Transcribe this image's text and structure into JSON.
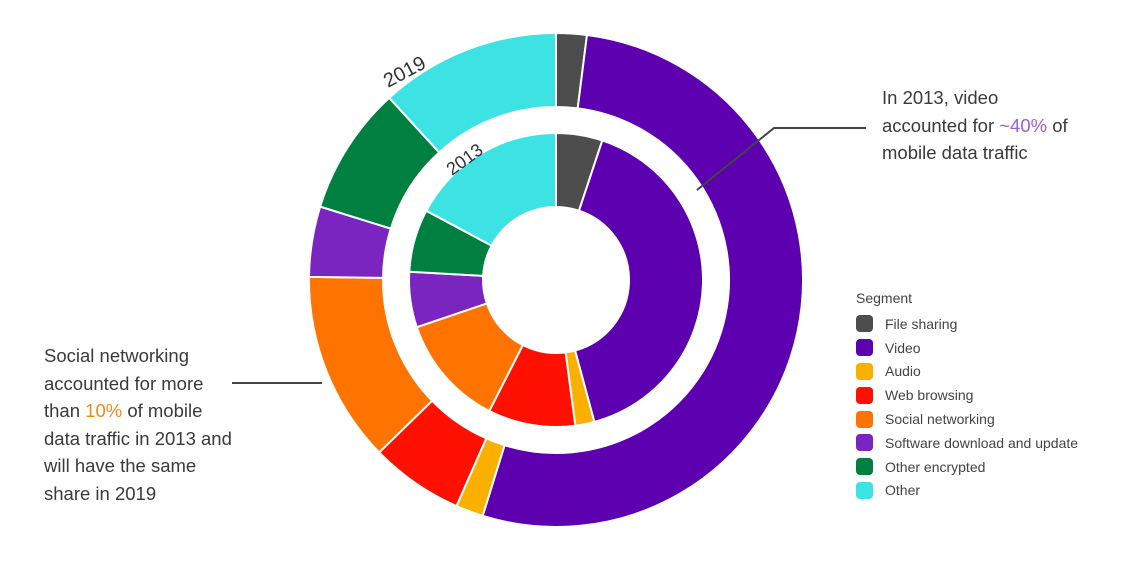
{
  "chart_data": {
    "type": "pie",
    "variant": "nested-donut",
    "legend_title": "Segment",
    "legend_position": "right",
    "categories": [
      "File sharing",
      "Video",
      "Audio",
      "Web browsing",
      "Social networking",
      "Software download and update",
      "Other encrypted",
      "Other"
    ],
    "colors": [
      "#4d4d4d",
      "#5c00b0",
      "#fbb000",
      "#ff1000",
      "#ff7300",
      "#7b25c0",
      "#008040",
      "#3de3e3"
    ],
    "series": [
      {
        "name": "2019",
        "ring": "outer",
        "values": [
          2,
          52.8,
          1.8,
          6.1,
          12.5,
          4.6,
          8.4,
          11.8
        ]
      },
      {
        "name": "2013",
        "ring": "inner",
        "values": [
          5.1,
          40.7,
          2.1,
          9.6,
          12.3,
          6.1,
          6.9,
          17.2
        ]
      }
    ],
    "annotations": {
      "right": {
        "pre": "In 2013, video accounted for ",
        "highlight": "~40%",
        "post": " of mobile data traffic",
        "highlight_color": "#9a5fd2"
      },
      "left": {
        "pre": "Social networking accounted for more than ",
        "highlight": "10%",
        "post": " of mobile data traffic in 2013 and will have the same share in 2019",
        "highlight_color": "#ee8a1c"
      }
    }
  }
}
